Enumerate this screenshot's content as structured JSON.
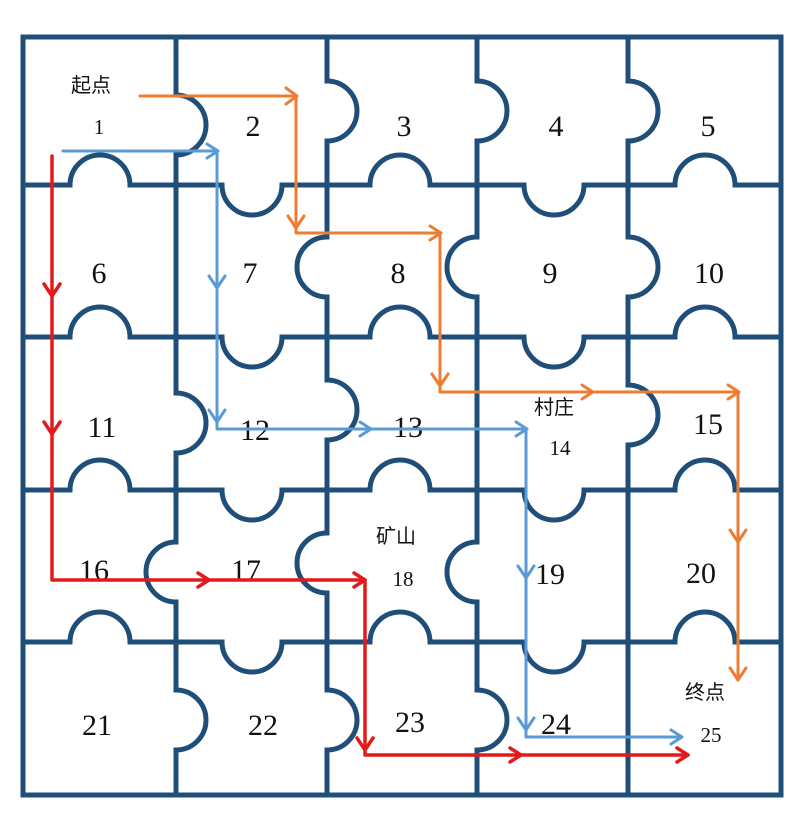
{
  "cells": [
    "1",
    "2",
    "3",
    "4",
    "5",
    "6",
    "7",
    "8",
    "9",
    "10",
    "11",
    "12",
    "13",
    "14",
    "15",
    "16",
    "17",
    "18",
    "19",
    "20",
    "21",
    "22",
    "23",
    "24",
    "25"
  ],
  "labels": {
    "start": "起点",
    "village": "村庄",
    "mine": "矿山",
    "end": "终点"
  },
  "colors": {
    "grid": "#1f4e79",
    "orange_route": "#ed7d31",
    "blue_route": "#5b9bd5",
    "red_route": "#e41a1a"
  },
  "routes": [
    {
      "color": "orange",
      "cells": [
        "1",
        "2",
        "7",
        "8",
        "13",
        "14",
        "15",
        "20",
        "25"
      ]
    },
    {
      "color": "blue",
      "cells": [
        "1",
        "2",
        "7",
        "12",
        "13",
        "14",
        "19",
        "24",
        "25"
      ]
    },
    {
      "color": "red",
      "cells": [
        "1",
        "6",
        "11",
        "16",
        "17",
        "18",
        "23",
        "24",
        "25"
      ]
    }
  ]
}
